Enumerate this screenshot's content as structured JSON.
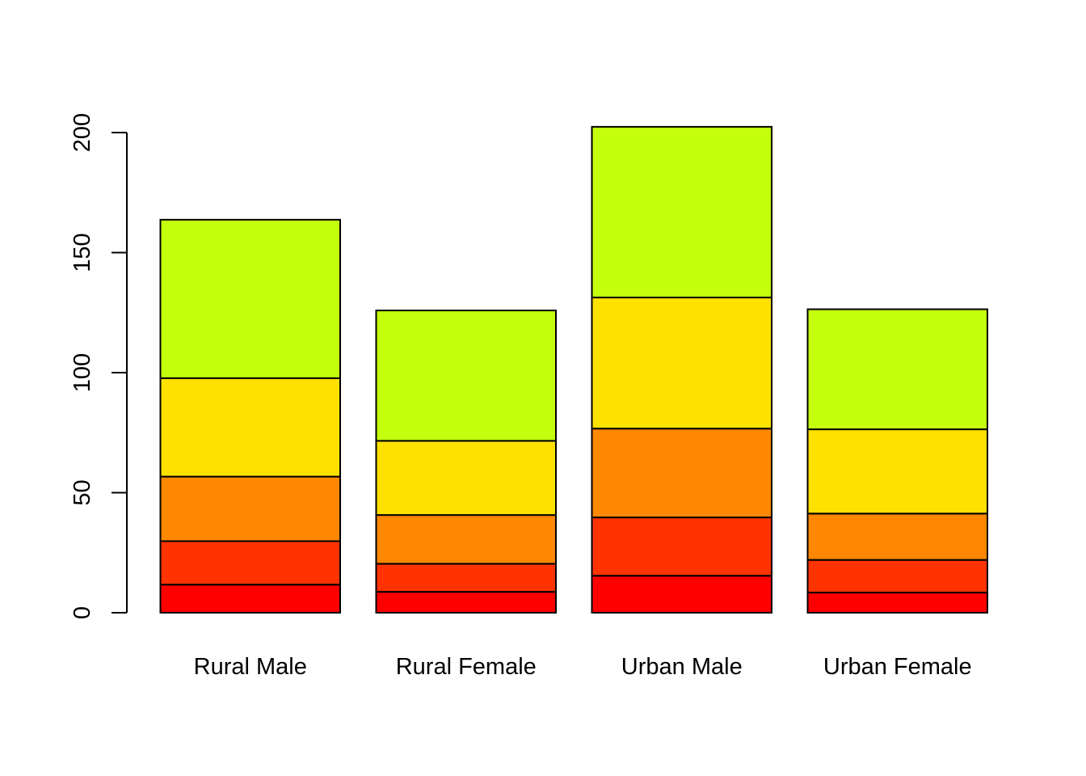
{
  "chart_data": {
    "type": "bar",
    "stacked": true,
    "categories": [
      "Rural Male",
      "Rural Female",
      "Urban Male",
      "Urban Female"
    ],
    "series": [
      {
        "values": [
          11.7,
          8.7,
          15.4,
          8.4
        ],
        "color": "#FF0000"
      },
      {
        "values": [
          18.1,
          11.7,
          24.3,
          13.6
        ],
        "color": "#FF3300"
      },
      {
        "values": [
          26.9,
          20.3,
          37.0,
          19.3
        ],
        "color": "#FF8800"
      },
      {
        "values": [
          41.0,
          30.9,
          54.6,
          35.1
        ],
        "color": "#FFE100"
      },
      {
        "values": [
          66.0,
          54.3,
          71.1,
          50.0
        ],
        "color": "#C4FF0D"
      }
    ],
    "yticks": [
      "0",
      "50",
      "100",
      "150",
      "200"
    ],
    "ylim": [
      0,
      200
    ],
    "grid": false,
    "title": "",
    "xlabel": "",
    "ylabel": ""
  }
}
